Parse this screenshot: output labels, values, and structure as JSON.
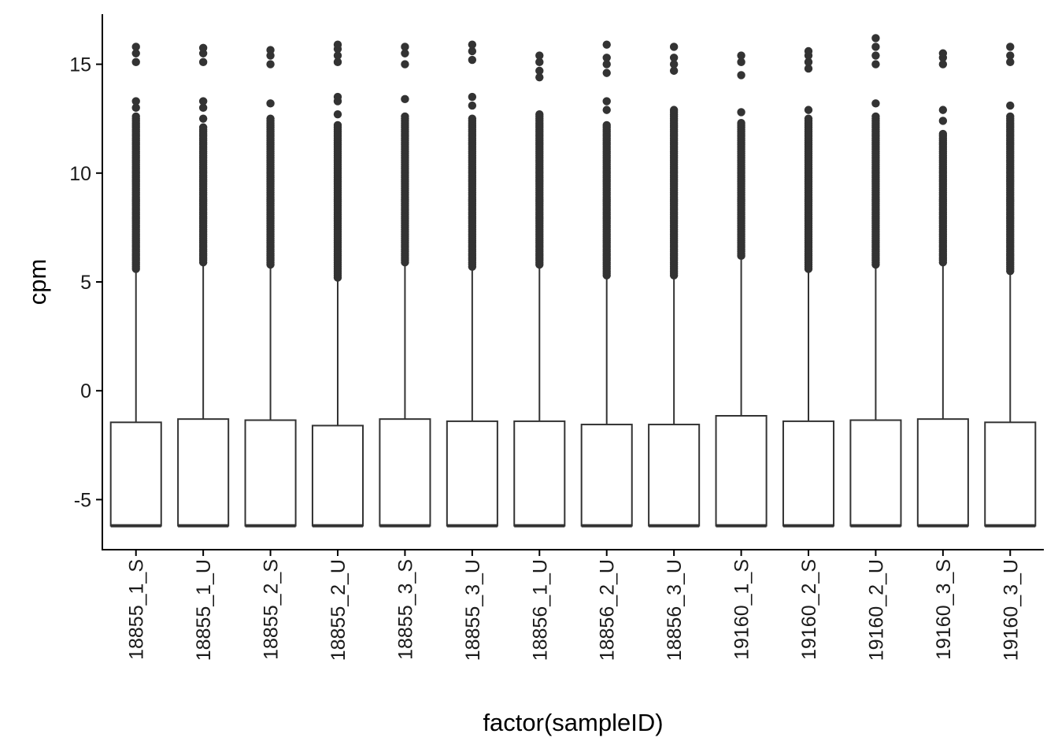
{
  "chart_data": {
    "type": "box",
    "xlabel": "factor(sampleID)",
    "ylabel": "cpm",
    "ylim": [
      -7.3,
      17.3
    ],
    "yticks": [
      -5,
      0,
      5,
      10,
      15
    ],
    "ytick_labels": [
      "-5",
      "0",
      "5",
      "10",
      "15"
    ],
    "grid": false,
    "categories": [
      "18855_1_S",
      "18855_1_U",
      "18855_2_S",
      "18855_2_U",
      "18855_3_S",
      "18855_3_U",
      "18856_1_U",
      "18856_2_U",
      "18856_3_U",
      "19160_1_S",
      "19160_2_S",
      "19160_2_U",
      "19160_3_S",
      "19160_3_U"
    ],
    "boxes": [
      {
        "min": -6.2,
        "q1": -6.2,
        "median": -6.2,
        "q3": -1.45,
        "whisker_high": 5.6,
        "outliers_from": 5.6,
        "outliers_to": 12.6,
        "extreme_outliers": [
          13.0,
          13.3,
          15.1,
          15.5,
          15.8
        ]
      },
      {
        "min": -6.2,
        "q1": -6.2,
        "median": -6.2,
        "q3": -1.3,
        "whisker_high": 5.9,
        "outliers_from": 5.9,
        "outliers_to": 12.1,
        "extreme_outliers": [
          12.5,
          13.0,
          13.3,
          15.1,
          15.5,
          15.75
        ]
      },
      {
        "min": -6.2,
        "q1": -6.2,
        "median": -6.2,
        "q3": -1.35,
        "whisker_high": 5.8,
        "outliers_from": 5.8,
        "outliers_to": 12.5,
        "extreme_outliers": [
          13.2,
          15.0,
          15.4,
          15.65
        ]
      },
      {
        "min": -6.2,
        "q1": -6.2,
        "median": -6.2,
        "q3": -1.6,
        "whisker_high": 5.2,
        "outliers_from": 5.2,
        "outliers_to": 12.2,
        "extreme_outliers": [
          12.7,
          13.3,
          13.5,
          15.1,
          15.4,
          15.7,
          15.9
        ]
      },
      {
        "min": -6.2,
        "q1": -6.2,
        "median": -6.2,
        "q3": -1.3,
        "whisker_high": 5.9,
        "outliers_from": 5.9,
        "outliers_to": 12.6,
        "extreme_outliers": [
          13.4,
          15.0,
          15.5,
          15.8
        ]
      },
      {
        "min": -6.2,
        "q1": -6.2,
        "median": -6.2,
        "q3": -1.4,
        "whisker_high": 5.7,
        "outliers_from": 5.7,
        "outliers_to": 12.5,
        "extreme_outliers": [
          13.1,
          13.5,
          15.2,
          15.6,
          15.9
        ]
      },
      {
        "min": -6.2,
        "q1": -6.2,
        "median": -6.2,
        "q3": -1.4,
        "whisker_high": 5.8,
        "outliers_from": 5.8,
        "outliers_to": 12.7,
        "extreme_outliers": [
          14.4,
          14.7,
          15.1,
          15.4
        ]
      },
      {
        "min": -6.2,
        "q1": -6.2,
        "median": -6.2,
        "q3": -1.55,
        "whisker_high": 5.3,
        "outliers_from": 5.3,
        "outliers_to": 12.2,
        "extreme_outliers": [
          12.9,
          13.3,
          14.6,
          15.0,
          15.3,
          15.9
        ]
      },
      {
        "min": -6.2,
        "q1": -6.2,
        "median": -6.2,
        "q3": -1.55,
        "whisker_high": 5.3,
        "outliers_from": 5.3,
        "outliers_to": 12.9,
        "extreme_outliers": [
          14.7,
          15.0,
          15.3,
          15.8
        ]
      },
      {
        "min": -6.2,
        "q1": -6.2,
        "median": -6.2,
        "q3": -1.15,
        "whisker_high": 6.2,
        "outliers_from": 6.2,
        "outliers_to": 12.3,
        "extreme_outliers": [
          12.8,
          14.5,
          15.1,
          15.4
        ]
      },
      {
        "min": -6.2,
        "q1": -6.2,
        "median": -6.2,
        "q3": -1.4,
        "whisker_high": 5.6,
        "outliers_from": 5.6,
        "outliers_to": 12.5,
        "extreme_outliers": [
          12.9,
          14.8,
          15.1,
          15.4,
          15.6
        ]
      },
      {
        "min": -6.2,
        "q1": -6.2,
        "median": -6.2,
        "q3": -1.35,
        "whisker_high": 5.8,
        "outliers_from": 5.8,
        "outliers_to": 12.6,
        "extreme_outliers": [
          13.2,
          15.0,
          15.4,
          15.8,
          16.2
        ]
      },
      {
        "min": -6.2,
        "q1": -6.2,
        "median": -6.2,
        "q3": -1.3,
        "whisker_high": 5.9,
        "outliers_from": 5.9,
        "outliers_to": 11.8,
        "extreme_outliers": [
          12.4,
          12.9,
          15.0,
          15.3,
          15.5
        ]
      },
      {
        "min": -6.2,
        "q1": -6.2,
        "median": -6.2,
        "q3": -1.45,
        "whisker_high": 5.5,
        "outliers_from": 5.5,
        "outliers_to": 12.6,
        "extreme_outliers": [
          13.1,
          15.1,
          15.4,
          15.8
        ]
      }
    ]
  }
}
